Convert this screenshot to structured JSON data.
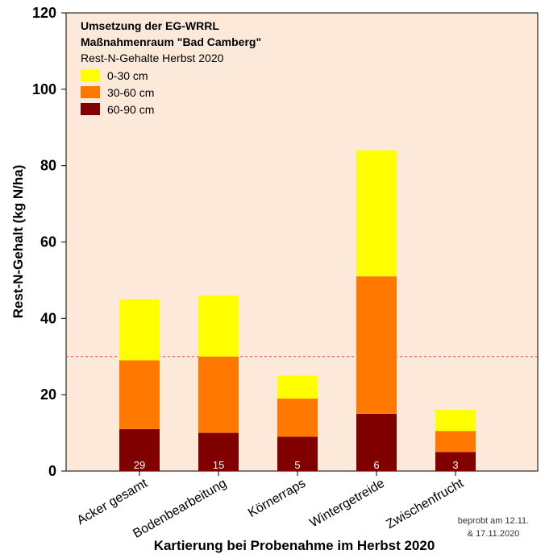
{
  "chart_data": {
    "type": "bar",
    "stacked": true,
    "categories": [
      "Acker gesamt",
      "Bodenbearbeitung",
      "Körnerraps",
      "Wintergetreide",
      "Zwischenfrucht"
    ],
    "series": [
      {
        "name": "60-90 cm",
        "values": [
          11,
          10,
          9,
          15,
          5
        ],
        "color": "#800000"
      },
      {
        "name": "30-60 cm",
        "values": [
          18,
          20,
          10,
          36,
          5.5
        ],
        "color": "#ff7800"
      },
      {
        "name": "0-30 cm",
        "values": [
          16,
          16,
          6,
          33,
          5.5
        ],
        "color": "#ffff00"
      }
    ],
    "sample_counts": [
      "29",
      "15",
      "5",
      "6",
      "3"
    ],
    "reference_line": {
      "y": 30,
      "color": "#e04040",
      "style": "dashed"
    },
    "ylabel": "Rest-N-Gehalt (kg N/ha)",
    "xlabel": "Kartierung bei Probenahme im Herbst 2020",
    "ylim": [
      0,
      120
    ],
    "yticks": [
      0,
      20,
      40,
      60,
      80,
      100,
      120
    ],
    "grid": false,
    "legend": {
      "placement": "top-left",
      "title_lines": [
        "Umsetzung der EG-WRRL",
        "Maßnahmenraum \"Bad Camberg\""
      ],
      "subtitle": "Rest-N-Gehalte Herbst 2020",
      "order": [
        "0-30 cm",
        "30-60 cm",
        "60-90 cm"
      ]
    },
    "plot_background": "#fde9d9",
    "note": [
      "beprobt am 12.11.",
      "& 17.11.2020"
    ]
  }
}
